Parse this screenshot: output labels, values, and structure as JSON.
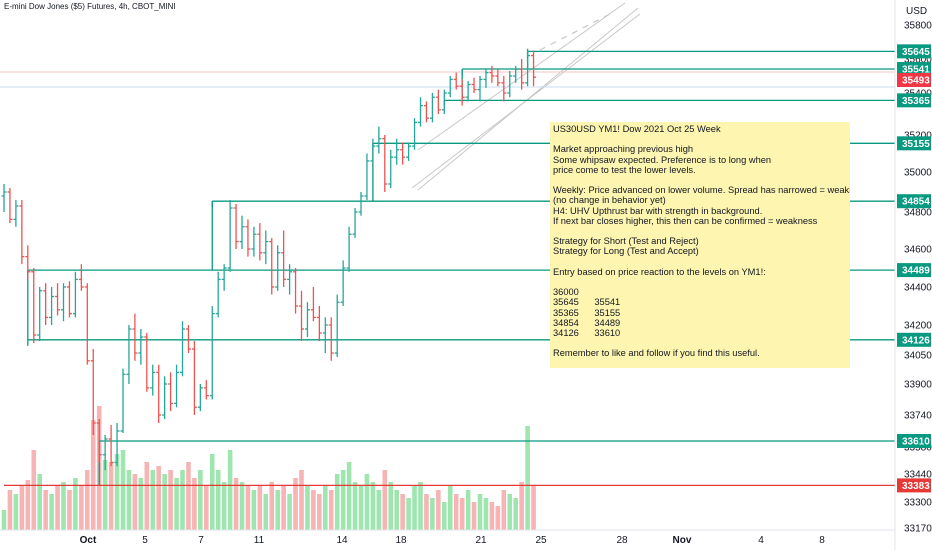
{
  "chart_title": "E-mini Dow Jones ($5) Futures, 4h, CBOT_MINI",
  "currency": "USD",
  "note_text": "US30USD YM1! Dow 2021 Oct 25 Week\n\nMarket approaching previous high\nSome whipsaw expected. Preference is to long when\nprice come to test the lower levels.\n\nWeekly: Price advanced on lower volume. Spread has narrowed = weakness\n(no change in behavior yet)\nH4: UHV Upthrust bar with strength in background.\nIf next bar closes higher, this then can be confirmed = weakness\n\nStrategy for Short (Test and Reject)\nStrategy for Long (Test and Accept)\n\nEntry based on price reaction to the levels on YM1!:\n\n36000\n35645      35541\n35365      35155\n34854      34489\n34126      33610\n\nRemember to like and follow if you find this useful.\n\nHave a profitable trading week ahead.",
  "colors": {
    "up": "#26a69a",
    "down": "#ef5350",
    "up_volume": "#9ee5b0",
    "down_volume": "#f7b4b4",
    "level": "#089981",
    "support_red": "#e53935",
    "channel": "#c8c8c8",
    "note_bg": "#fdf5b0"
  },
  "chart_data": {
    "type": "candlestick",
    "title": "E-mini Dow Jones ($5) Futures, 4h, CBOT_MINI",
    "y_unit": "USD",
    "y_ticks": [
      35800,
      35600,
      35400,
      35200,
      35000,
      34800,
      34600,
      34400,
      34200,
      34050,
      33900,
      33740,
      33580,
      33440,
      33300,
      33170
    ],
    "x_ticks": [
      "Oct",
      "5",
      "7",
      "11",
      "14",
      "18",
      "21",
      "25",
      "28",
      "Nov",
      "4",
      "8"
    ],
    "last_price": 35493,
    "levels": [
      {
        "label": "35645",
        "value": 35645,
        "from_bar": 88
      },
      {
        "label": "35541",
        "value": 35541,
        "from_bar": 77
      },
      {
        "label": "35365",
        "value": 35365,
        "from_bar": 74
      },
      {
        "label": "35155",
        "value": 35155,
        "from_bar": 62
      },
      {
        "label": "34854",
        "value": 34854,
        "from_bar": 35
      },
      {
        "label": "34489",
        "value": 34489,
        "from_bar": 4
      },
      {
        "label": "34126",
        "value": 34126,
        "from_bar": 4
      },
      {
        "label": "33610",
        "value": 33610,
        "from_bar": 16
      },
      {
        "label": "33383",
        "value": 33383,
        "from_bar": 0,
        "color": "red"
      }
    ],
    "price_tag": {
      "label": "35493",
      "value": 35493
    },
    "ohlc": [
      [
        34880,
        34940,
        34800,
        34900
      ],
      [
        34900,
        34920,
        34740,
        34760
      ],
      [
        34760,
        34860,
        34720,
        34830
      ],
      [
        34830,
        34860,
        34520,
        34560
      ],
      [
        34560,
        34620,
        34440,
        34480
      ],
      [
        34480,
        34500,
        34110,
        34150
      ],
      [
        34150,
        34400,
        34120,
        34380
      ],
      [
        34380,
        34420,
        34200,
        34240
      ],
      [
        34240,
        34400,
        34200,
        34350
      ],
      [
        34350,
        34420,
        34250,
        34280
      ],
      [
        34280,
        34420,
        34220,
        34400
      ],
      [
        34400,
        34430,
        34240,
        34260
      ],
      [
        34260,
        34480,
        34240,
        34440
      ],
      [
        34440,
        34520,
        34380,
        34400
      ],
      [
        34400,
        34420,
        34000,
        34020
      ],
      [
        34020,
        34080,
        33640,
        33700
      ],
      [
        33700,
        33720,
        33500,
        33540
      ],
      [
        33540,
        33640,
        33460,
        33620
      ],
      [
        33620,
        33690,
        33480,
        33500
      ],
      [
        33500,
        33700,
        33480,
        33660
      ],
      [
        33660,
        33980,
        33650,
        33950
      ],
      [
        33950,
        34200,
        33900,
        34180
      ],
      [
        34180,
        34260,
        34020,
        34060
      ],
      [
        34060,
        34180,
        34000,
        34140
      ],
      [
        34140,
        34160,
        33860,
        33880
      ],
      [
        33880,
        34000,
        33840,
        33960
      ],
      [
        33960,
        34000,
        33700,
        33740
      ],
      [
        33740,
        33940,
        33720,
        33900
      ],
      [
        33900,
        33960,
        33760,
        33800
      ],
      [
        33800,
        34000,
        33780,
        33960
      ],
      [
        33960,
        34220,
        33940,
        34180
      ],
      [
        34180,
        34200,
        34060,
        34080
      ],
      [
        34080,
        34120,
        33740,
        33780
      ],
      [
        33780,
        33900,
        33760,
        33880
      ],
      [
        33880,
        33920,
        33820,
        33840
      ],
      [
        33840,
        34300,
        33820,
        34260
      ],
      [
        34260,
        34480,
        34240,
        34440
      ],
      [
        34440,
        34520,
        34380,
        34500
      ],
      [
        34500,
        34860,
        34480,
        34820
      ],
      [
        34820,
        34840,
        34600,
        34640
      ],
      [
        34640,
        34780,
        34600,
        34720
      ],
      [
        34720,
        34760,
        34560,
        34600
      ],
      [
        34600,
        34720,
        34560,
        34680
      ],
      [
        34680,
        34740,
        34540,
        34580
      ],
      [
        34580,
        34700,
        34520,
        34640
      ],
      [
        34640,
        34660,
        34360,
        34400
      ],
      [
        34400,
        34620,
        34380,
        34580
      ],
      [
        34580,
        34700,
        34400,
        34440
      ],
      [
        34440,
        34520,
        34360,
        34480
      ],
      [
        34480,
        34500,
        34260,
        34300
      ],
      [
        34300,
        34380,
        34120,
        34180
      ],
      [
        34180,
        34320,
        34140,
        34280
      ],
      [
        34280,
        34400,
        34220,
        34240
      ],
      [
        34240,
        34300,
        34120,
        34160
      ],
      [
        34160,
        34240,
        34060,
        34200
      ],
      [
        34200,
        34240,
        34020,
        34060
      ],
      [
        34060,
        34360,
        34040,
        34320
      ],
      [
        34320,
        34540,
        34300,
        34500
      ],
      [
        34500,
        34720,
        34480,
        34680
      ],
      [
        34680,
        34820,
        34660,
        34800
      ],
      [
        34800,
        34900,
        34780,
        34880
      ],
      [
        34880,
        35100,
        34860,
        35060
      ],
      [
        35060,
        35180,
        35040,
        35140
      ],
      [
        35140,
        35240,
        35100,
        35180
      ],
      [
        35180,
        35200,
        34900,
        34940
      ],
      [
        34940,
        35120,
        34920,
        35080
      ],
      [
        35080,
        35180,
        35040,
        35120
      ],
      [
        35120,
        35160,
        35040,
        35080
      ],
      [
        35080,
        35160,
        35060,
        35140
      ],
      [
        35140,
        35280,
        35120,
        35260
      ],
      [
        35260,
        35380,
        35240,
        35340
      ],
      [
        35340,
        35360,
        35260,
        35280
      ],
      [
        35280,
        35400,
        35260,
        35380
      ],
      [
        35380,
        35420,
        35300,
        35320
      ],
      [
        35320,
        35420,
        35300,
        35400
      ],
      [
        35400,
        35500,
        35380,
        35480
      ],
      [
        35480,
        35520,
        35420,
        35440
      ],
      [
        35440,
        35480,
        35340,
        35380
      ],
      [
        35380,
        35470,
        35360,
        35450
      ],
      [
        35450,
        35490,
        35400,
        35420
      ],
      [
        35420,
        35500,
        35360,
        35480
      ],
      [
        35480,
        35540,
        35430,
        35520
      ],
      [
        35520,
        35560,
        35460,
        35500
      ],
      [
        35500,
        35540,
        35440,
        35460
      ],
      [
        35460,
        35500,
        35360,
        35400
      ],
      [
        35400,
        35530,
        35380,
        35500
      ],
      [
        35500,
        35560,
        35460,
        35540
      ],
      [
        35540,
        35600,
        35420,
        35460
      ],
      [
        35460,
        35660,
        35440,
        35620
      ],
      [
        35620,
        35650,
        35440,
        35493
      ]
    ],
    "volume_relative": [
      0.1,
      0.2,
      0.18,
      0.22,
      0.25,
      0.4,
      0.28,
      0.2,
      0.18,
      0.22,
      0.24,
      0.2,
      0.26,
      0.22,
      0.3,
      0.55,
      0.62,
      0.35,
      0.34,
      0.38,
      0.4,
      0.3,
      0.28,
      0.26,
      0.34,
      0.3,
      0.32,
      0.28,
      0.3,
      0.26,
      0.3,
      0.34,
      0.26,
      0.3,
      0.22,
      0.38,
      0.3,
      0.24,
      0.4,
      0.26,
      0.24,
      0.22,
      0.2,
      0.22,
      0.18,
      0.24,
      0.2,
      0.22,
      0.18,
      0.26,
      0.3,
      0.22,
      0.2,
      0.18,
      0.22,
      0.2,
      0.28,
      0.3,
      0.34,
      0.24,
      0.22,
      0.28,
      0.24,
      0.2,
      0.3,
      0.24,
      0.2,
      0.18,
      0.16,
      0.22,
      0.24,
      0.18,
      0.16,
      0.2,
      0.14,
      0.22,
      0.18,
      0.16,
      0.2,
      0.14,
      0.18,
      0.16,
      0.14,
      0.12,
      0.2,
      0.18,
      0.16,
      0.24,
      0.52,
      0.22
    ]
  }
}
